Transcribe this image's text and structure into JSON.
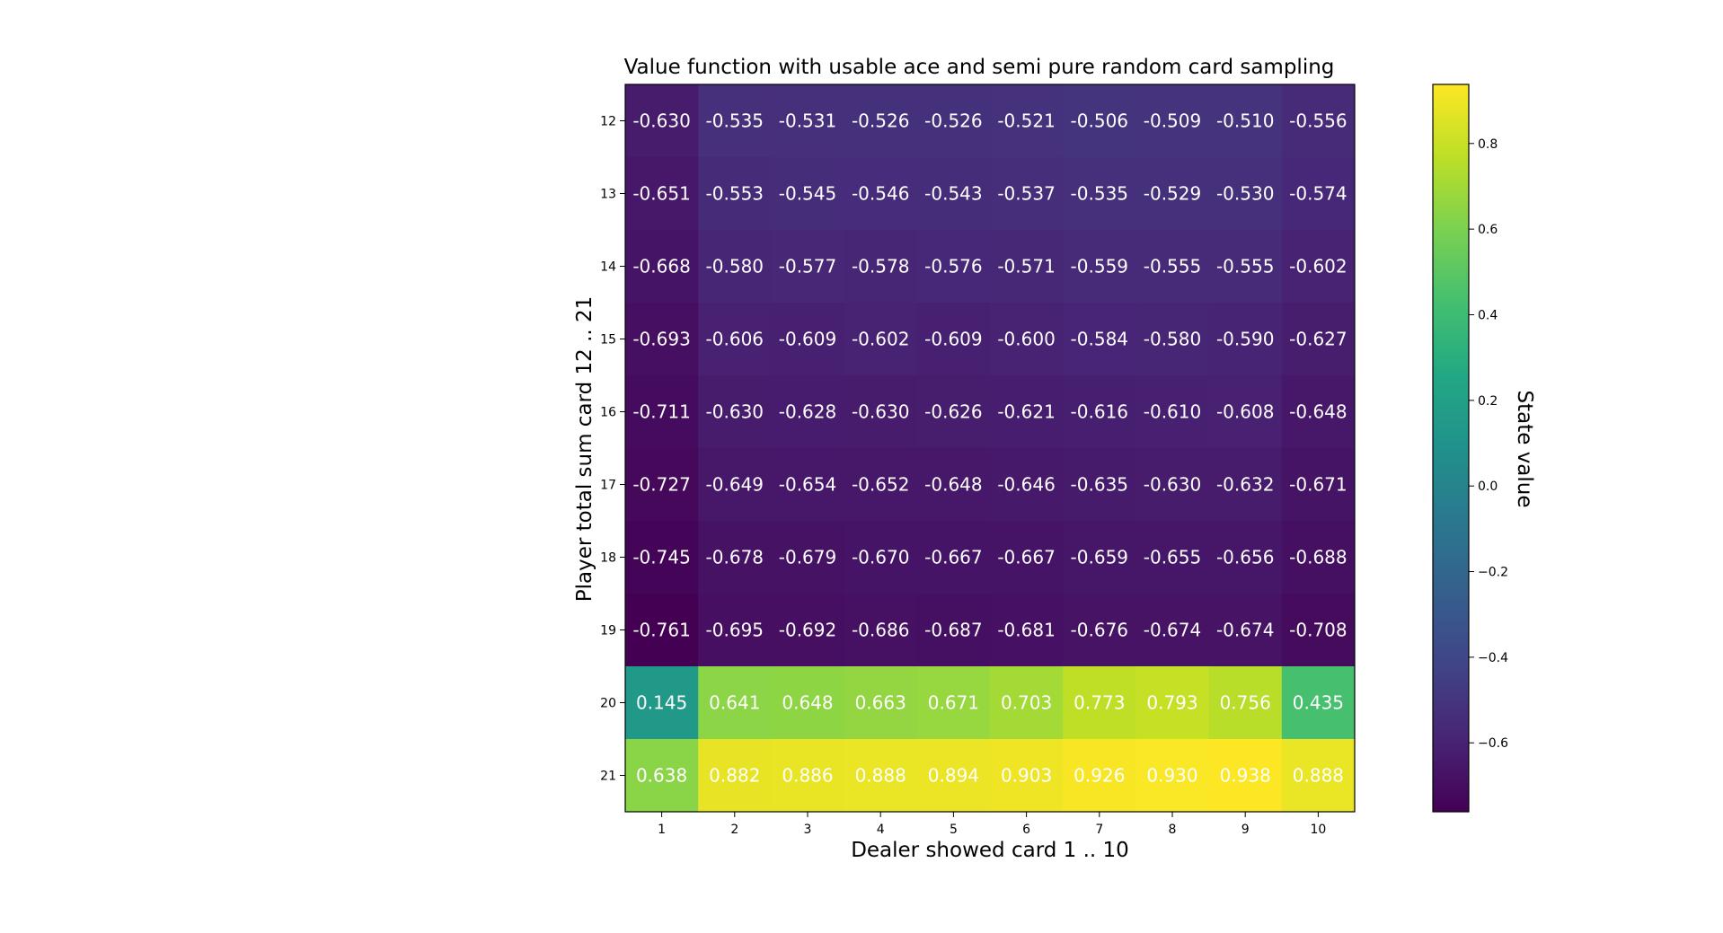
{
  "chart_data": {
    "type": "heatmap",
    "title": "Value function with usable ace and semi pure random card sampling",
    "xlabel": "Dealer showed card 1 .. 10",
    "ylabel": "Player total sum card 12 .. 21",
    "x_categories": [
      "1",
      "2",
      "3",
      "4",
      "5",
      "6",
      "7",
      "8",
      "9",
      "10"
    ],
    "y_categories": [
      "12",
      "13",
      "14",
      "15",
      "16",
      "17",
      "18",
      "19",
      "20",
      "21"
    ],
    "values": [
      [
        -0.63,
        -0.535,
        -0.531,
        -0.526,
        -0.526,
        -0.521,
        -0.506,
        -0.509,
        -0.51,
        -0.556
      ],
      [
        -0.651,
        -0.553,
        -0.545,
        -0.546,
        -0.543,
        -0.537,
        -0.535,
        -0.529,
        -0.53,
        -0.574
      ],
      [
        -0.668,
        -0.58,
        -0.577,
        -0.578,
        -0.576,
        -0.571,
        -0.559,
        -0.555,
        -0.555,
        -0.602
      ],
      [
        -0.693,
        -0.606,
        -0.609,
        -0.602,
        -0.609,
        -0.6,
        -0.584,
        -0.58,
        -0.59,
        -0.627
      ],
      [
        -0.711,
        -0.63,
        -0.628,
        -0.63,
        -0.626,
        -0.621,
        -0.616,
        -0.61,
        -0.608,
        -0.648
      ],
      [
        -0.727,
        -0.649,
        -0.654,
        -0.652,
        -0.648,
        -0.646,
        -0.635,
        -0.63,
        -0.632,
        -0.671
      ],
      [
        -0.745,
        -0.678,
        -0.679,
        -0.67,
        -0.667,
        -0.667,
        -0.659,
        -0.655,
        -0.656,
        -0.688
      ],
      [
        -0.761,
        -0.695,
        -0.692,
        -0.686,
        -0.687,
        -0.681,
        -0.676,
        -0.674,
        -0.674,
        -0.708
      ],
      [
        0.145,
        0.641,
        0.648,
        0.663,
        0.671,
        0.703,
        0.773,
        0.793,
        0.756,
        0.435
      ],
      [
        0.638,
        0.882,
        0.886,
        0.888,
        0.894,
        0.903,
        0.926,
        0.93,
        0.938,
        0.888
      ]
    ],
    "value_labels": [
      [
        "-0.630",
        "-0.535",
        "-0.531",
        "-0.526",
        "-0.526",
        "-0.521",
        "-0.506",
        "-0.509",
        "-0.510",
        "-0.556"
      ],
      [
        "-0.651",
        "-0.553",
        "-0.545",
        "-0.546",
        "-0.543",
        "-0.537",
        "-0.535",
        "-0.529",
        "-0.530",
        "-0.574"
      ],
      [
        "-0.668",
        "-0.580",
        "-0.577",
        "-0.578",
        "-0.576",
        "-0.571",
        "-0.559",
        "-0.555",
        "-0.555",
        "-0.602"
      ],
      [
        "-0.693",
        "-0.606",
        "-0.609",
        "-0.602",
        "-0.609",
        "-0.600",
        "-0.584",
        "-0.580",
        "-0.590",
        "-0.627"
      ],
      [
        "-0.711",
        "-0.630",
        "-0.628",
        "-0.630",
        "-0.626",
        "-0.621",
        "-0.616",
        "-0.610",
        "-0.608",
        "-0.648"
      ],
      [
        "-0.727",
        "-0.649",
        "-0.654",
        "-0.652",
        "-0.648",
        "-0.646",
        "-0.635",
        "-0.630",
        "-0.632",
        "-0.671"
      ],
      [
        "-0.745",
        "-0.678",
        "-0.679",
        "-0.670",
        "-0.667",
        "-0.667",
        "-0.659",
        "-0.655",
        "-0.656",
        "-0.688"
      ],
      [
        "-0.761",
        "-0.695",
        "-0.692",
        "-0.686",
        "-0.687",
        "-0.681",
        "-0.676",
        "-0.674",
        "-0.674",
        "-0.708"
      ],
      [
        "0.145",
        "0.641",
        "0.648",
        "0.663",
        "0.671",
        "0.703",
        "0.773",
        "0.793",
        "0.756",
        "0.435"
      ],
      [
        "0.638",
        "0.882",
        "0.886",
        "0.888",
        "0.894",
        "0.903",
        "0.926",
        "0.930",
        "0.938",
        "0.888"
      ]
    ],
    "colormap": "viridis",
    "vmin": -0.761,
    "vmax": 0.938,
    "colorbar": {
      "label": "State value",
      "ticks": [
        0.8,
        0.6,
        0.4,
        0.2,
        0.0,
        -0.2,
        -0.4,
        -0.6
      ],
      "tick_labels": [
        "0.8",
        "0.6",
        "0.4",
        "0.2",
        "0.0",
        "−0.2",
        "−0.4",
        "−0.6"
      ]
    }
  }
}
